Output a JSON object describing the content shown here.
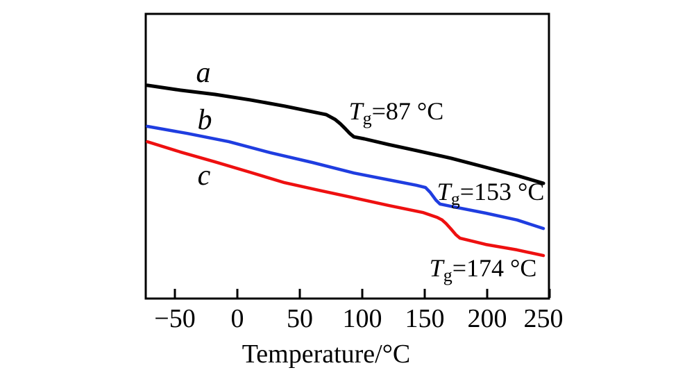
{
  "figure": {
    "background": "#ffffff",
    "axis_color": "#000000"
  },
  "chart_data": {
    "type": "line",
    "title": "",
    "xlabel": "Temperature/°C",
    "ylabel": "",
    "y_unit": "heat flow (arbitrary units, 0-100 of plot height, endothermic down)",
    "xlim": [
      -73.3,
      249.5
    ],
    "ylim": [
      0,
      100
    ],
    "grid": false,
    "legend_position": "none",
    "x_ticks": [
      {
        "value": -50,
        "label": "−50",
        "dx": 0
      },
      {
        "value": 0,
        "label": "0",
        "dx": 0
      },
      {
        "value": 50,
        "label": "50",
        "dx": 0
      },
      {
        "value": 100,
        "label": "100",
        "dx": 0
      },
      {
        "value": 150,
        "label": "150",
        "dx": 0
      },
      {
        "value": 200,
        "label": "200",
        "dx": 0
      },
      {
        "value": 250,
        "label": "250",
        "dx": -9
      }
    ],
    "series": [
      {
        "name": "a",
        "color": "#000000",
        "stroke_width": 5,
        "label": "a",
        "label_pos": [
          -27.2,
          76.1
        ],
        "tg": {
          "prefix": "T",
          "sub": "g",
          "suffix": "=87 °C",
          "value_celsius": 87,
          "pos": [
            127.2,
            62.9
          ]
        },
        "points": [
          [
            -72,
            74.9
          ],
          [
            -45.6,
            73.2
          ],
          [
            -17.8,
            71.7
          ],
          [
            10,
            69.8
          ],
          [
            37.8,
            67.6
          ],
          [
            71.1,
            64.6
          ],
          [
            78.3,
            62.9
          ],
          [
            82.2,
            61.5
          ],
          [
            86.1,
            59.8
          ],
          [
            90,
            58
          ],
          [
            93.3,
            56.8
          ],
          [
            101.7,
            56.1
          ],
          [
            121.1,
            54.1
          ],
          [
            143.3,
            52
          ],
          [
            171.1,
            49.3
          ],
          [
            198.9,
            46.1
          ],
          [
            223.9,
            43.2
          ],
          [
            245,
            40.5
          ]
        ]
      },
      {
        "name": "b",
        "color": "#1f3de0",
        "stroke_width": 4.5,
        "label": "b",
        "label_pos": [
          -26.1,
          59.5
        ],
        "tg": {
          "prefix": "T",
          "sub": "g",
          "suffix": "=153 °C",
          "value_celsius": 153,
          "pos": [
            202.8,
            34.6
          ]
        },
        "points": [
          [
            -72,
            60.5
          ],
          [
            -40,
            58
          ],
          [
            -6.7,
            55.1
          ],
          [
            26.7,
            51.2
          ],
          [
            60,
            47.8
          ],
          [
            93.3,
            44.1
          ],
          [
            121.1,
            41.7
          ],
          [
            143.3,
            39.8
          ],
          [
            150.6,
            39
          ],
          [
            154.4,
            37.3
          ],
          [
            158.9,
            34.6
          ],
          [
            162.2,
            33.2
          ],
          [
            171.1,
            32.4
          ],
          [
            198.9,
            30
          ],
          [
            223.9,
            27.6
          ],
          [
            245,
            24.6
          ]
        ]
      },
      {
        "name": "c",
        "color": "#ee1010",
        "stroke_width": 4.5,
        "label": "c",
        "label_pos": [
          -26.7,
          40.0
        ],
        "tg": {
          "prefix": "T",
          "sub": "g",
          "suffix": "=174 °C",
          "value_celsius": 174,
          "pos": [
            196.7,
            7.8
          ]
        },
        "points": [
          [
            -72,
            55.1
          ],
          [
            -45.6,
            51.5
          ],
          [
            -17.8,
            48
          ],
          [
            10,
            44.4
          ],
          [
            37.8,
            40.7
          ],
          [
            65.6,
            38
          ],
          [
            93.3,
            35.4
          ],
          [
            121.1,
            32.7
          ],
          [
            148.9,
            30.2
          ],
          [
            160,
            28.5
          ],
          [
            163.9,
            27.6
          ],
          [
            167.2,
            26.3
          ],
          [
            171.1,
            24.4
          ],
          [
            175,
            22.4
          ],
          [
            178.3,
            21.2
          ],
          [
            187.8,
            20.2
          ],
          [
            198.9,
            19
          ],
          [
            223.9,
            17.1
          ],
          [
            245,
            15.1
          ]
        ]
      }
    ]
  }
}
